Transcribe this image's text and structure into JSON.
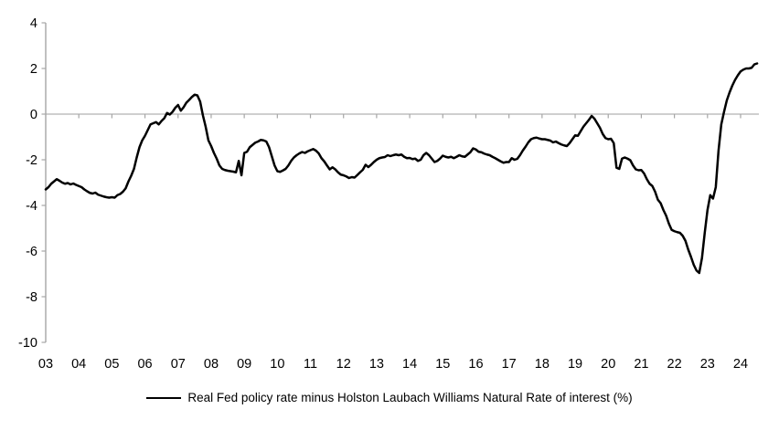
{
  "chart_data": {
    "type": "line",
    "title": "",
    "xlabel": "",
    "ylabel": "",
    "legend_position": "bottom-center",
    "grid": "zero-line-only",
    "ylim": [
      -10,
      4
    ],
    "y_ticks": [
      4,
      2,
      0,
      -2,
      -4,
      -6,
      -8,
      -10
    ],
    "y_tick_labels": [
      "4",
      "2",
      "0",
      "-2",
      "-4",
      "-6",
      "-8",
      "-10"
    ],
    "x_tick_labels": [
      "03",
      "04",
      "05",
      "06",
      "07",
      "08",
      "09",
      "10",
      "11",
      "12",
      "13",
      "14",
      "15",
      "16",
      "17",
      "18",
      "19",
      "20",
      "21",
      "22",
      "23",
      "24"
    ],
    "line_color": "#000000",
    "axis_color": "#a6a6a6",
    "zero_line_color": "#bfbfbf",
    "series": [
      {
        "name": "Real Fed policy rate minus Holston Laubach Williams Natural Rate of interest (%)",
        "start": "2003-01",
        "frequency": "monthly",
        "values": [
          -3.3,
          -3.2,
          -3.05,
          -2.95,
          -2.85,
          -2.92,
          -3.0,
          -3.05,
          -3.02,
          -3.08,
          -3.04,
          -3.1,
          -3.15,
          -3.2,
          -3.3,
          -3.38,
          -3.45,
          -3.48,
          -3.44,
          -3.53,
          -3.57,
          -3.61,
          -3.64,
          -3.66,
          -3.64,
          -3.66,
          -3.55,
          -3.5,
          -3.4,
          -3.25,
          -2.95,
          -2.7,
          -2.4,
          -1.9,
          -1.45,
          -1.15,
          -0.95,
          -0.7,
          -0.45,
          -0.4,
          -0.35,
          -0.45,
          -0.3,
          -0.18,
          0.05,
          -0.02,
          0.1,
          0.28,
          0.4,
          0.15,
          0.3,
          0.5,
          0.62,
          0.75,
          0.85,
          0.82,
          0.55,
          -0.05,
          -0.55,
          -1.15,
          -1.4,
          -1.7,
          -1.95,
          -2.25,
          -2.4,
          -2.45,
          -2.48,
          -2.5,
          -2.52,
          -2.55,
          -2.05,
          -2.68,
          -1.7,
          -1.65,
          -1.45,
          -1.35,
          -1.25,
          -1.2,
          -1.13,
          -1.15,
          -1.2,
          -1.45,
          -1.85,
          -2.25,
          -2.5,
          -2.53,
          -2.47,
          -2.4,
          -2.25,
          -2.05,
          -1.9,
          -1.8,
          -1.72,
          -1.66,
          -1.7,
          -1.63,
          -1.58,
          -1.53,
          -1.6,
          -1.72,
          -1.93,
          -2.07,
          -2.25,
          -2.42,
          -2.33,
          -2.42,
          -2.55,
          -2.65,
          -2.68,
          -2.73,
          -2.8,
          -2.76,
          -2.78,
          -2.67,
          -2.55,
          -2.44,
          -2.22,
          -2.32,
          -2.22,
          -2.1,
          -2.0,
          -1.93,
          -1.9,
          -1.88,
          -1.8,
          -1.84,
          -1.8,
          -1.77,
          -1.8,
          -1.77,
          -1.87,
          -1.93,
          -1.92,
          -1.97,
          -1.95,
          -2.05,
          -2.0,
          -1.8,
          -1.7,
          -1.8,
          -1.95,
          -2.1,
          -2.05,
          -1.95,
          -1.82,
          -1.87,
          -1.9,
          -1.87,
          -1.93,
          -1.87,
          -1.8,
          -1.85,
          -1.87,
          -1.77,
          -1.67,
          -1.5,
          -1.55,
          -1.65,
          -1.67,
          -1.73,
          -1.77,
          -1.8,
          -1.87,
          -1.93,
          -2.0,
          -2.07,
          -2.13,
          -2.1,
          -2.1,
          -1.93,
          -2.0,
          -1.96,
          -1.8,
          -1.6,
          -1.43,
          -1.24,
          -1.1,
          -1.05,
          -1.03,
          -1.07,
          -1.1,
          -1.1,
          -1.13,
          -1.16,
          -1.24,
          -1.2,
          -1.27,
          -1.33,
          -1.37,
          -1.4,
          -1.27,
          -1.1,
          -0.93,
          -0.95,
          -0.75,
          -0.55,
          -0.4,
          -0.25,
          -0.08,
          -0.2,
          -0.4,
          -0.6,
          -0.87,
          -1.05,
          -1.1,
          -1.08,
          -1.27,
          -2.35,
          -2.4,
          -1.95,
          -1.9,
          -1.95,
          -2.02,
          -2.25,
          -2.42,
          -2.46,
          -2.45,
          -2.6,
          -2.85,
          -3.05,
          -3.15,
          -3.4,
          -3.75,
          -3.9,
          -4.2,
          -4.45,
          -4.8,
          -5.07,
          -5.13,
          -5.17,
          -5.2,
          -5.33,
          -5.55,
          -5.93,
          -6.25,
          -6.6,
          -6.85,
          -6.96,
          -6.3,
          -5.2,
          -4.2,
          -3.55,
          -3.7,
          -3.2,
          -1.6,
          -0.45,
          0.1,
          0.6,
          0.95,
          1.25,
          1.5,
          1.7,
          1.87,
          1.95,
          2.0,
          2.0,
          2.03,
          2.18,
          2.22
        ]
      }
    ],
    "legend": "Real Fed policy rate minus Holston Laubach Williams Natural Rate of interest (%)"
  }
}
